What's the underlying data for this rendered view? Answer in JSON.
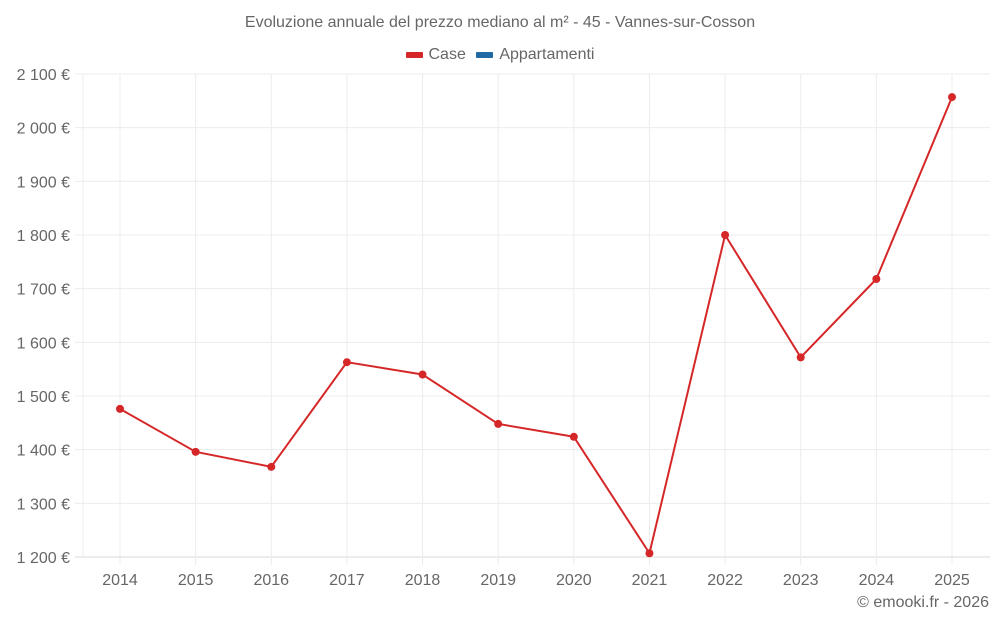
{
  "header": {
    "title": "Evoluzione annuale del prezzo mediano al m² - 45 - Vannes-sur-Cosson"
  },
  "legend": {
    "items": [
      {
        "label": "Case",
        "color": "#d62728"
      },
      {
        "label": "Appartamenti",
        "color": "#1f6aa5"
      }
    ]
  },
  "footer": {
    "credit": "© emooki.fr - 2026"
  },
  "chart_data": {
    "type": "line",
    "title": "Evoluzione annuale del prezzo mediano al m² - 45 - Vannes-sur-Cosson",
    "xlabel": "",
    "ylabel": "",
    "categories": [
      "2014",
      "2015",
      "2016",
      "2017",
      "2018",
      "2019",
      "2020",
      "2021",
      "2022",
      "2023",
      "2024",
      "2025"
    ],
    "series": [
      {
        "name": "Case",
        "color": "#d62728",
        "values": [
          1476,
          1396,
          1368,
          1563,
          1540,
          1448,
          1424,
          1207,
          1800,
          1572,
          1718,
          2057
        ]
      },
      {
        "name": "Appartamenti",
        "color": "#1f6aa5",
        "values": []
      }
    ],
    "ylim": [
      1200,
      2100
    ],
    "yticks": [
      1200,
      1300,
      1400,
      1500,
      1600,
      1700,
      1800,
      1900,
      2000,
      2100
    ],
    "ytick_labels": [
      "1 200 €",
      "1 300 €",
      "1 400 €",
      "1 500 €",
      "1 600 €",
      "1 700 €",
      "1 800 €",
      "1 900 €",
      "2 000 €",
      "2 100 €"
    ],
    "grid": true,
    "legend_position": "top"
  }
}
